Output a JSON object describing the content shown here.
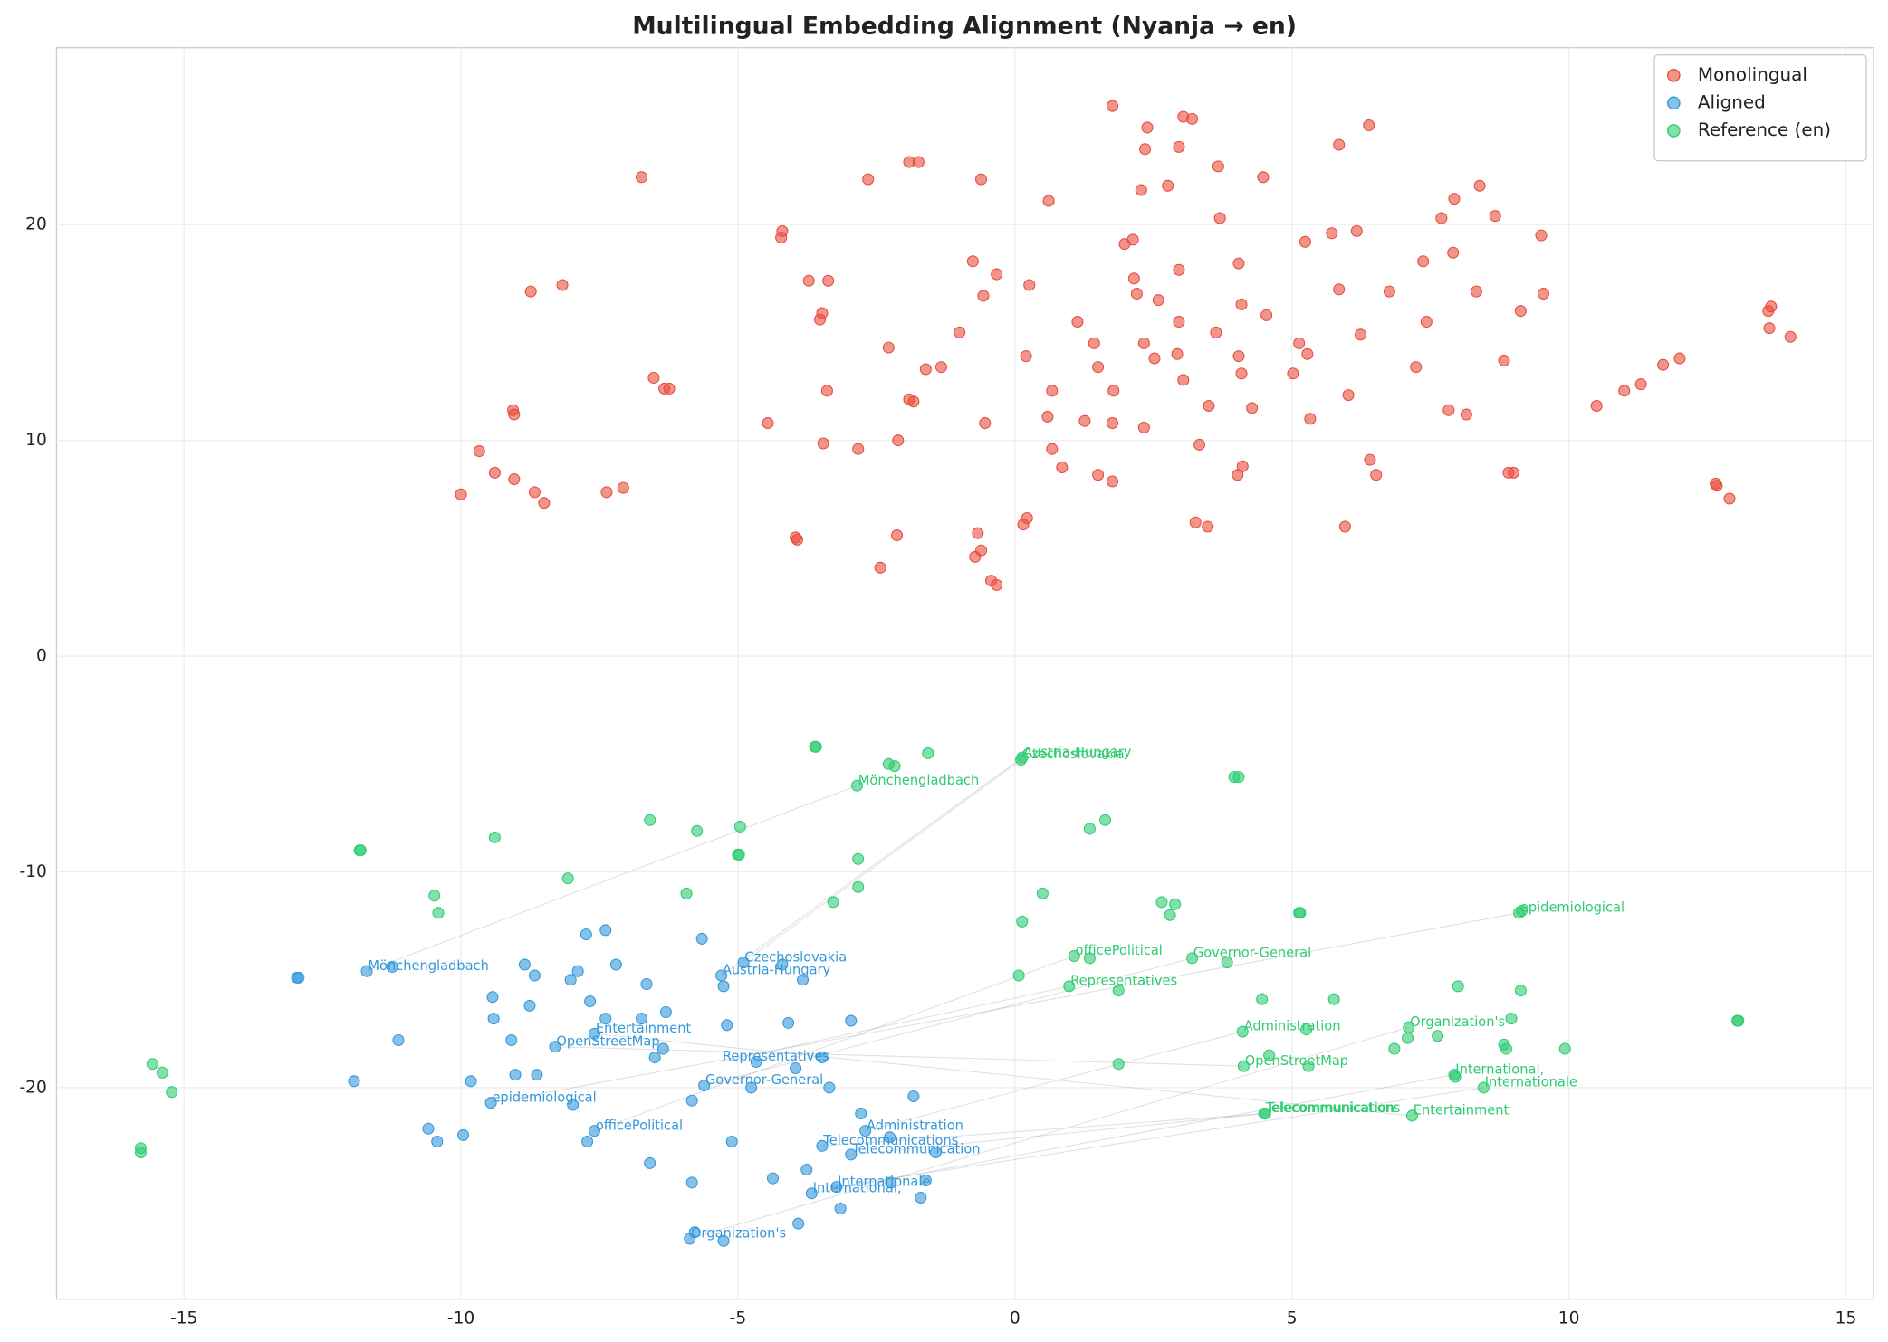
{
  "chart_data": {
    "type": "scatter",
    "title": "Multilingual Embedding Alignment (Nyanja → en)",
    "xlim": [
      -17.3,
      15.5
    ],
    "ylim": [
      -29.8,
      28.2
    ],
    "xticks": [
      -15,
      -10,
      -5,
      0,
      5,
      10,
      15
    ],
    "yticks": [
      -20,
      -10,
      0,
      10,
      20
    ],
    "grid": true,
    "legend": "upper right",
    "series": [
      {
        "name": "Monolingual",
        "color": "#e74c3c",
        "x": [
          1.76,
          2.39,
          3.04,
          3.2,
          6.39,
          2.35,
          2.96,
          5.85,
          -1.91,
          -1.74,
          3.67,
          -6.74,
          -2.65,
          -0.61,
          4.48,
          2.28,
          2.76,
          8.39,
          0.61,
          7.93,
          3.7,
          7.7,
          8.67,
          -4.2,
          -4.22,
          5.72,
          6.17,
          9.5,
          2.13,
          1.98,
          5.24,
          7.91,
          -0.76,
          4.04,
          7.37,
          2.96,
          2.15,
          -0.33,
          -8.17,
          -8.74,
          -3.72,
          -3.37,
          0.26,
          5.85,
          -0.57,
          2.2,
          2.59,
          6.76,
          8.33,
          9.54,
          -3.48,
          -3.52,
          4.09,
          9.13,
          13.6,
          13.65,
          1.13,
          2.96,
          3.63,
          4.54,
          7.43,
          -1.0,
          13.62,
          14.0,
          -2.28,
          1.43,
          2.33,
          5.13,
          6.24,
          0.2,
          2.93,
          4.04,
          5.28,
          8.83,
          10.5,
          11.0,
          11.3,
          11.7,
          12.0,
          -1.33,
          -1.61,
          1.5,
          2.52,
          5.02,
          7.24,
          -6.52,
          -6.33,
          -6.24,
          -3.39,
          0.67,
          1.78,
          6.02,
          3.04,
          4.09,
          -1.91,
          -1.83,
          3.5,
          -9.06,
          -9.04,
          4.28,
          5.33,
          7.83,
          8.15,
          -4.46,
          -0.54,
          0.59,
          1.26,
          1.76,
          2.33,
          -2.11,
          -3.46,
          -2.83,
          0.67,
          3.33,
          -9.67,
          6.41,
          0.85,
          4.11,
          -9.39,
          -9.04,
          -8.67,
          -8.5,
          1.5,
          1.76,
          4.02,
          6.52,
          8.91,
          9.0,
          -10.0,
          -7.37,
          -7.07,
          12.65,
          12.67,
          12.9,
          3.26,
          3.48,
          5.96,
          0.22,
          0.15,
          -3.96,
          -3.93,
          -2.13,
          -0.67,
          -0.61,
          -0.72,
          -2.43,
          -0.43,
          -0.33
        ],
        "y": [
          25.5,
          24.5,
          25.0,
          24.9,
          24.6,
          23.5,
          23.6,
          23.7,
          22.9,
          22.9,
          22.7,
          22.2,
          22.1,
          22.1,
          22.2,
          21.6,
          21.8,
          21.8,
          21.1,
          21.2,
          20.3,
          20.3,
          20.4,
          19.7,
          19.4,
          19.6,
          19.7,
          19.5,
          19.3,
          19.1,
          19.2,
          18.7,
          18.3,
          18.2,
          18.3,
          17.9,
          17.5,
          17.7,
          17.2,
          16.9,
          17.4,
          17.4,
          17.2,
          17.0,
          16.7,
          16.8,
          16.5,
          16.9,
          16.9,
          16.8,
          15.9,
          15.6,
          16.3,
          16.0,
          16.0,
          16.2,
          15.5,
          15.5,
          15.0,
          15.8,
          15.5,
          15.0,
          15.2,
          14.8,
          14.3,
          14.5,
          14.5,
          14.5,
          14.9,
          13.9,
          14.0,
          13.9,
          14.0,
          13.7,
          11.6,
          12.3,
          12.6,
          13.5,
          13.8,
          13.4,
          13.3,
          13.4,
          13.8,
          13.1,
          13.4,
          12.9,
          12.4,
          12.4,
          12.3,
          12.3,
          12.3,
          12.1,
          12.8,
          13.1,
          11.9,
          11.8,
          11.6,
          11.4,
          11.2,
          11.5,
          11.0,
          11.4,
          11.2,
          10.8,
          10.8,
          11.1,
          10.9,
          10.8,
          10.6,
          10.0,
          9.86,
          9.6,
          9.6,
          9.8,
          9.5,
          9.1,
          8.75,
          8.8,
          8.5,
          8.2,
          7.6,
          7.1,
          8.4,
          8.1,
          8.4,
          8.4,
          8.5,
          8.5,
          7.5,
          7.6,
          7.8,
          8.0,
          7.9,
          7.3,
          6.2,
          6.0,
          6.0,
          6.4,
          6.1,
          5.5,
          5.4,
          5.6,
          5.7,
          4.9,
          4.6,
          4.1,
          3.5,
          3.3
        ]
      },
      {
        "name": "Aligned",
        "color": "#3498db",
        "x": [
          -12.96,
          -12.93,
          -11.7,
          -11.24,
          -7.74,
          -7.39,
          -5.65,
          -8.85,
          -8.67,
          -7.89,
          -8.02,
          -7.2,
          -6.65,
          -5.26,
          -4.2,
          -3.83,
          -9.43,
          -8.76,
          -7.67,
          -7.39,
          -9.41,
          -6.74,
          -6.3,
          -5.2,
          -4.09,
          -2.96,
          -11.13,
          -9.09,
          -7.59,
          -6.35,
          -6.5,
          -8.3,
          -4.67,
          -3.48,
          -3.96,
          -11.93,
          -9.82,
          -9.02,
          -8.63,
          -5.61,
          -4.76,
          -3.35,
          -5.83,
          -7.98,
          -9.46,
          -1.83,
          -2.78,
          -10.59,
          -9.96,
          -10.43,
          -7.59,
          -7.72,
          -5.11,
          -2.26,
          -3.48,
          -1.43,
          -2.96,
          -6.59,
          -3.76,
          -4.37,
          -5.83,
          -1.61,
          -2.24,
          -3.22,
          -3.67,
          -1.7,
          -3.15,
          -3.91,
          -5.78,
          -5.87,
          -5.26,
          -4.9,
          -5.3,
          -2.7
        ],
        "y": [
          -14.9,
          -14.9,
          -14.6,
          -14.4,
          -12.9,
          -12.7,
          -13.1,
          -14.3,
          -14.8,
          -14.6,
          -15.0,
          -14.3,
          -15.2,
          -15.3,
          -14.3,
          -15.0,
          -15.8,
          -16.2,
          -16.0,
          -16.8,
          -16.8,
          -16.8,
          -16.5,
          -17.1,
          -17.0,
          -16.9,
          -17.8,
          -17.8,
          -17.5,
          -18.2,
          -18.6,
          -18.1,
          -18.8,
          -18.6,
          -19.1,
          -19.7,
          -19.7,
          -19.4,
          -19.4,
          -19.9,
          -20.0,
          -20.0,
          -20.6,
          -20.8,
          -20.7,
          -20.4,
          -21.2,
          -21.9,
          -22.2,
          -22.5,
          -22.0,
          -22.5,
          -22.5,
          -22.3,
          -22.7,
          -23.0,
          -23.1,
          -23.5,
          -23.8,
          -24.2,
          -24.4,
          -24.3,
          -24.4,
          -24.6,
          -24.9,
          -25.1,
          -25.6,
          -26.3,
          -26.7,
          -27.0,
          -27.1,
          -14.2,
          -14.8,
          -22.0
        ]
      },
      {
        "name": "Reference (en)",
        "color": "#2ecc71",
        "x": [
          -3.61,
          -3.59,
          -1.57,
          -2.28,
          -2.17,
          0.11,
          0.13,
          -2.85,
          3.96,
          4.04,
          -6.59,
          -5.74,
          -4.96,
          -9.39,
          1.63,
          1.35,
          -11.83,
          -11.81,
          -5.0,
          -4.98,
          -2.83,
          -2.83,
          -8.07,
          -10.48,
          -10.41,
          -5.93,
          -3.28,
          0.5,
          2.65,
          2.89,
          2.8,
          0.13,
          5.13,
          5.15,
          9.1,
          9.15,
          1.07,
          1.35,
          3.2,
          3.83,
          0.07,
          0.98,
          1.87,
          8.0,
          9.13,
          4.46,
          5.76,
          13.04,
          13.06,
          8.96,
          7.11,
          4.11,
          5.26,
          7.09,
          7.63,
          8.83,
          8.87,
          9.93,
          6.85,
          4.59,
          5.3,
          4.13,
          1.87,
          7.93,
          7.95,
          8.46,
          4.5,
          4.52,
          7.17,
          -15.57,
          -15.39,
          -15.22,
          -15.78,
          -15.78
        ],
        "y": [
          -4.2,
          -4.2,
          -4.5,
          -5.0,
          -5.1,
          -4.8,
          -4.7,
          -6.0,
          -5.6,
          -5.6,
          -7.6,
          -8.1,
          -7.9,
          -8.4,
          -7.6,
          -8.0,
          -9.0,
          -9.0,
          -9.2,
          -9.2,
          -9.4,
          -10.7,
          -10.3,
          -11.1,
          -11.9,
          -11.0,
          -11.4,
          -11.0,
          -11.4,
          -11.5,
          -12.0,
          -12.3,
          -11.9,
          -11.9,
          -11.9,
          -11.8,
          -13.9,
          -14.0,
          -14.0,
          -14.2,
          -14.8,
          -15.3,
          -15.5,
          -15.3,
          -15.5,
          -15.9,
          -15.9,
          -16.9,
          -16.9,
          -16.8,
          -17.2,
          -17.4,
          -17.3,
          -17.7,
          -17.6,
          -18.0,
          -18.2,
          -18.2,
          -18.2,
          -18.5,
          -19.0,
          -19.0,
          -18.9,
          -19.4,
          -19.5,
          -20.0,
          -21.2,
          -21.2,
          -21.3,
          -18.9,
          -19.3,
          -20.2,
          -22.8,
          -23.0
        ]
      }
    ],
    "annotations": [
      {
        "text": "Mönchengladbach",
        "aligned": [
          -11.7,
          -14.6
        ],
        "reference": [
          -2.85,
          -6.0
        ]
      },
      {
        "text": "Czechoslovakia",
        "aligned": [
          -4.9,
          -14.2
        ],
        "reference": [
          0.11,
          -4.8
        ]
      },
      {
        "text": "Austria-Hungary",
        "aligned": [
          -5.3,
          -14.8
        ],
        "reference": [
          0.13,
          -4.7
        ]
      },
      {
        "text": "Entertainment",
        "aligned": [
          -7.59,
          -17.5
        ],
        "reference": [
          7.17,
          -21.3
        ]
      },
      {
        "text": "OpenStreetMap",
        "aligned": [
          -8.3,
          -18.1
        ],
        "reference": [
          4.13,
          -19.0
        ]
      },
      {
        "text": "Representatives",
        "aligned": [
          -5.3,
          -18.8
        ],
        "reference": [
          0.98,
          -15.3
        ]
      },
      {
        "text": "Governor-General",
        "aligned": [
          -5.61,
          -19.9
        ],
        "reference": [
          3.2,
          -14.0
        ]
      },
      {
        "text": "epidemiological",
        "aligned": [
          -9.46,
          -20.7
        ],
        "reference": [
          9.1,
          -11.9
        ]
      },
      {
        "text": "officePolitical",
        "aligned": [
          -7.59,
          -22.0
        ],
        "reference": [
          1.07,
          -13.9
        ]
      },
      {
        "text": "Administration",
        "aligned": [
          -2.7,
          -22.0
        ],
        "reference": [
          4.11,
          -17.4
        ]
      },
      {
        "text": "Telecommunications",
        "aligned": [
          -3.48,
          -22.7
        ],
        "reference": [
          4.5,
          -21.2
        ]
      },
      {
        "text": "Telecommunication",
        "aligned": [
          -2.96,
          -23.1
        ],
        "reference": [
          4.52,
          -21.2
        ]
      },
      {
        "text": "Internationale",
        "aligned": [
          -3.22,
          -24.6
        ],
        "reference": [
          8.46,
          -20.0
        ]
      },
      {
        "text": "International,",
        "aligned": [
          -3.67,
          -24.9
        ],
        "reference": [
          7.93,
          -19.4
        ]
      },
      {
        "text": "Organization's",
        "aligned": [
          -5.87,
          -27.0
        ],
        "reference": [
          7.11,
          -17.2
        ]
      }
    ]
  }
}
